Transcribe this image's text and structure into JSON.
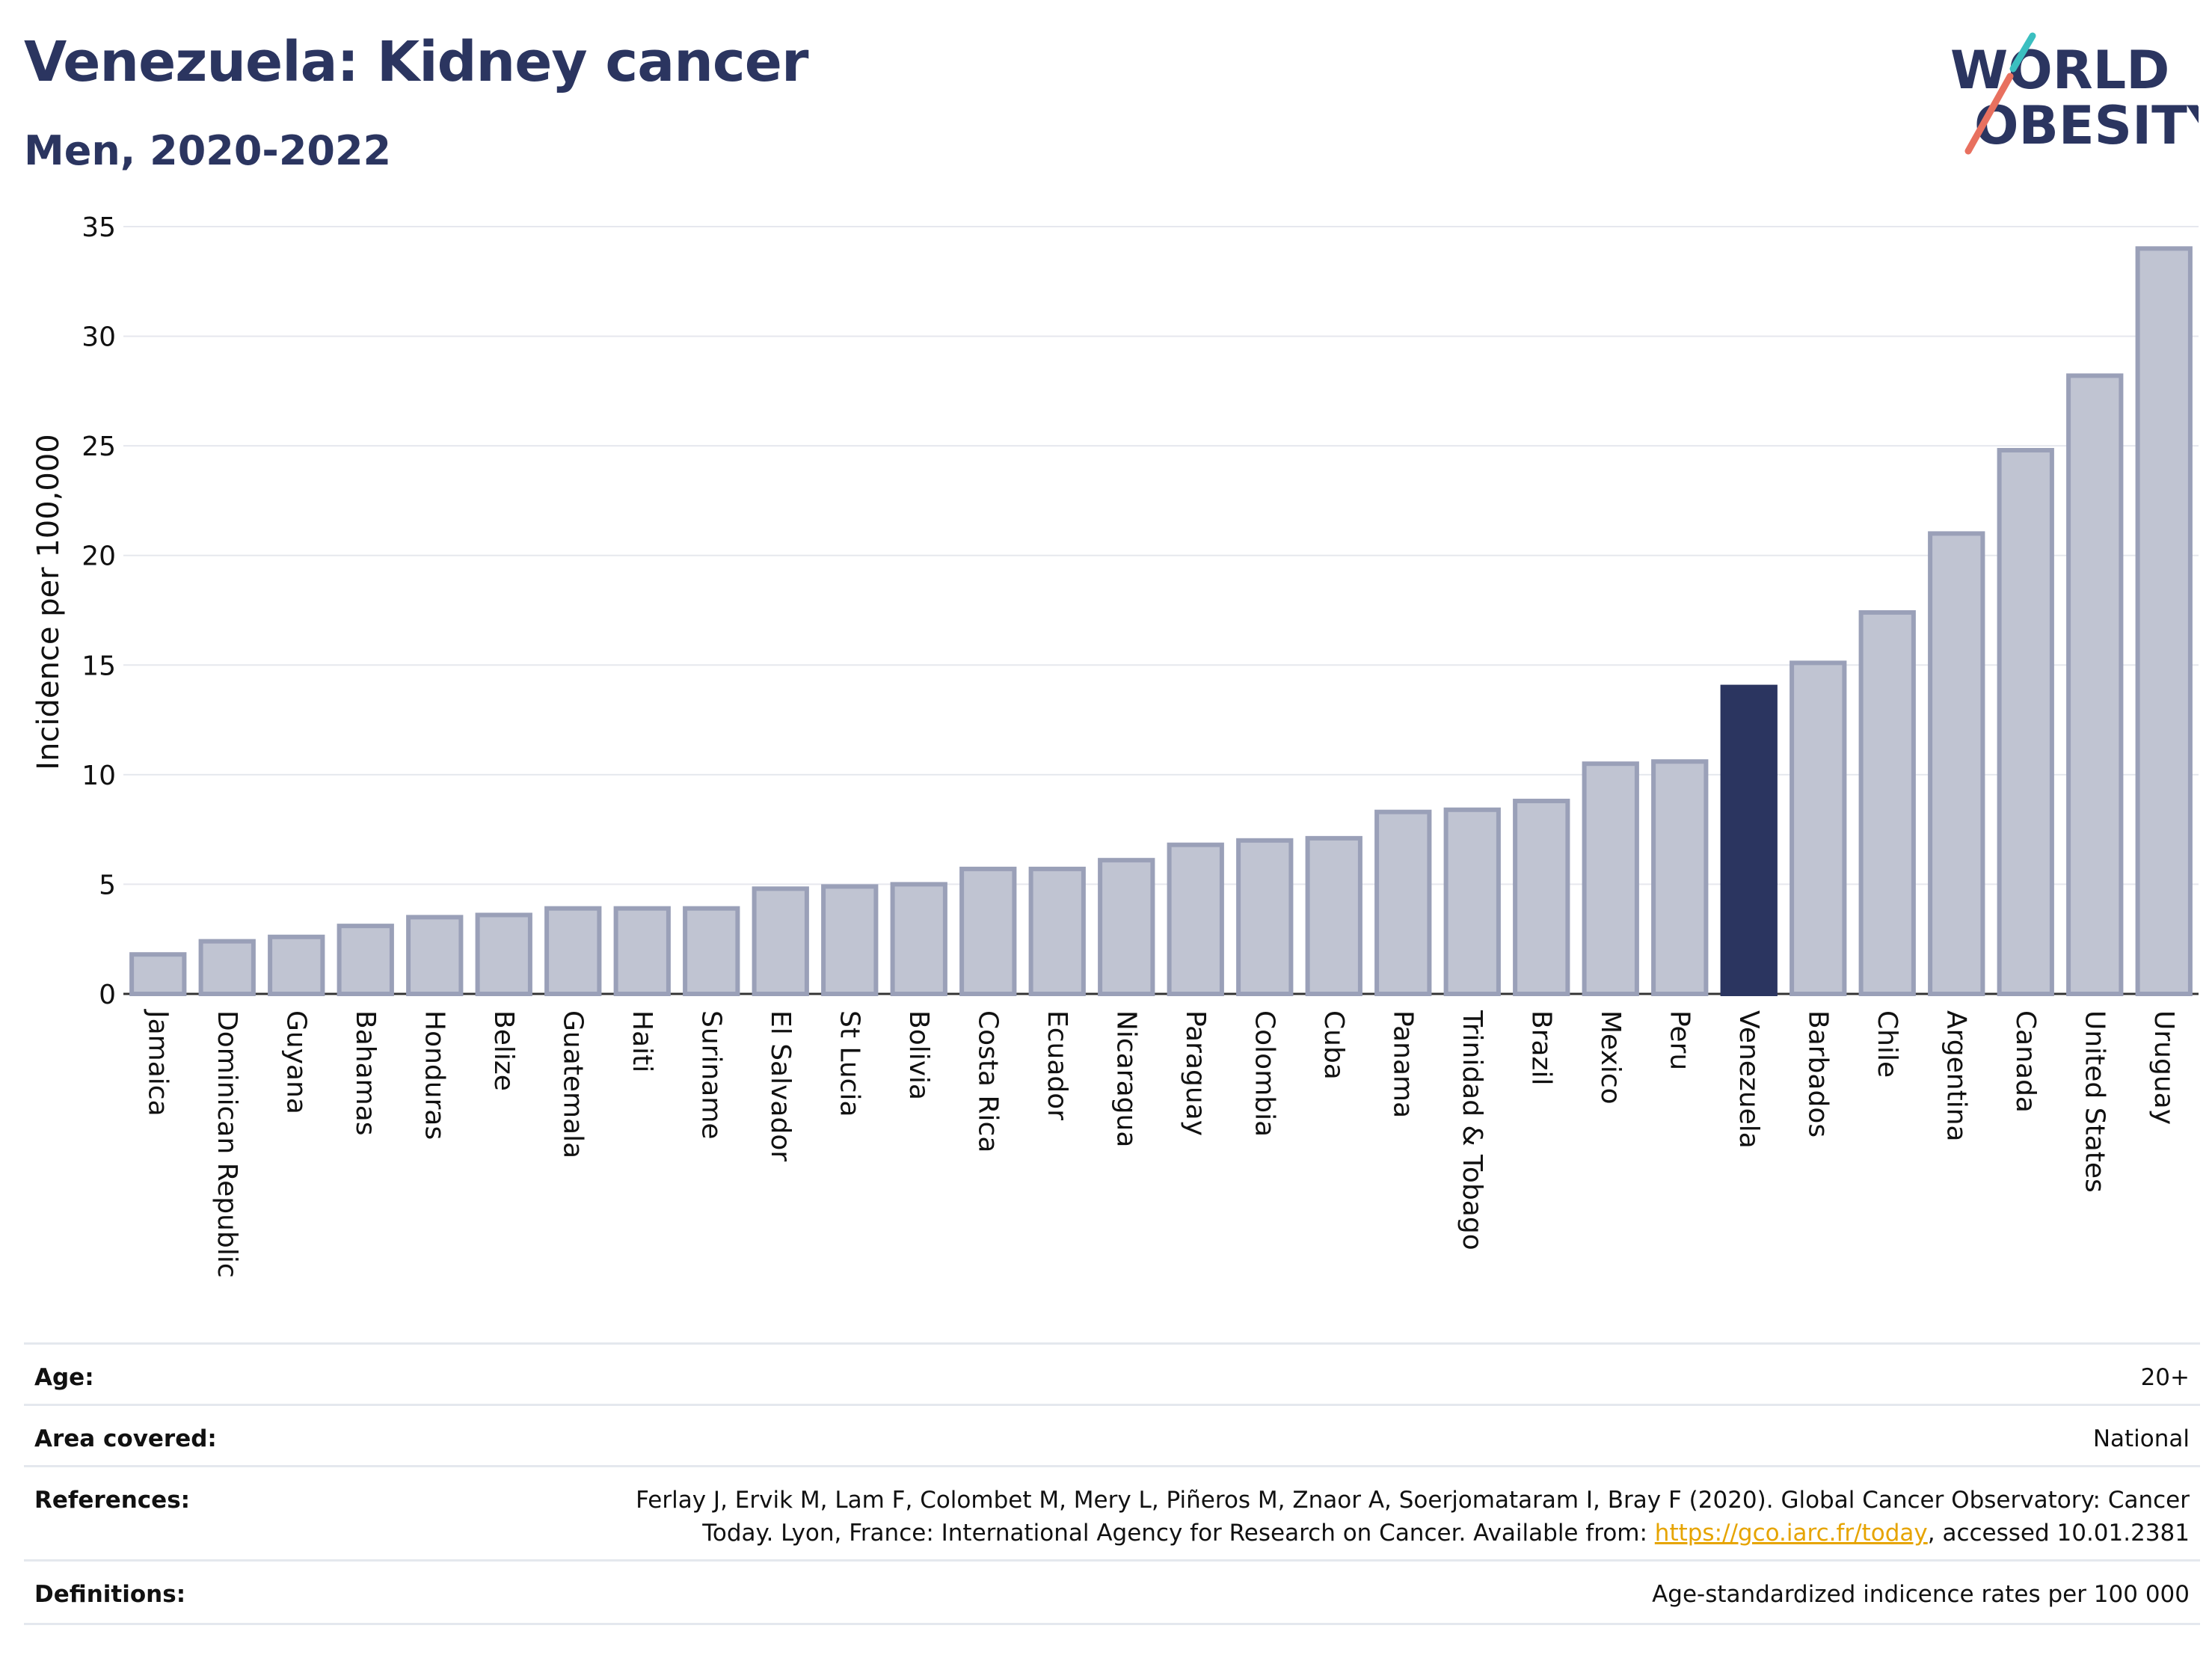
{
  "header": {
    "title": "Venezuela: Kidney cancer",
    "subtitle": "Men, 2020-2022"
  },
  "logo": {
    "line1": "WORLD",
    "line2": "OBESITY"
  },
  "chart_data": {
    "type": "bar",
    "ylabel": "Incidence per 100,000",
    "ylim": [
      0,
      35
    ],
    "yticks": [
      0,
      5,
      10,
      15,
      20,
      25,
      30,
      35
    ],
    "grid": true,
    "highlight": "Venezuela",
    "colors": {
      "bar": "#c0c4d2",
      "bar_edge": "#9aa0b8",
      "highlight": "#2b3560"
    },
    "categories": [
      "Jamaica",
      "Dominican Republic",
      "Guyana",
      "Bahamas",
      "Honduras",
      "Belize",
      "Guatemala",
      "Haiti",
      "Suriname",
      "El Salvador",
      "St Lucia",
      "Bolivia",
      "Costa Rica",
      "Ecuador",
      "Nicaragua",
      "Paraguay",
      "Colombia",
      "Cuba",
      "Panama",
      "Trinidad & Tobago",
      "Brazil",
      "Mexico",
      "Peru",
      "Venezuela",
      "Barbados",
      "Chile",
      "Argentina",
      "Canada",
      "United States",
      "Uruguay"
    ],
    "values": [
      1.8,
      2.4,
      2.6,
      3.1,
      3.5,
      3.6,
      3.9,
      3.9,
      3.9,
      4.8,
      4.9,
      5.0,
      5.7,
      5.7,
      6.1,
      6.8,
      7.0,
      7.1,
      8.3,
      8.4,
      8.8,
      10.5,
      10.6,
      14.0,
      15.1,
      17.4,
      21.0,
      24.8,
      28.2,
      34.0
    ]
  },
  "meta": {
    "age": {
      "label": "Age:",
      "value": "20+"
    },
    "area": {
      "label": "Area covered:",
      "value": "National"
    },
    "references": {
      "label": "References:",
      "line1": "Ferlay J, Ervik M, Lam F, Colombet M, Mery L, Piñeros M, Znaor A, Soerjomataram I, Bray F (2020). Global Cancer Observatory: Cancer",
      "line2_pre": "Today. Lyon, France: International Agency for Research on Cancer. Available from: ",
      "link": "https://gco.iarc.fr/today",
      "line2_post": ", accessed 10.01.2381"
    },
    "definitions": {
      "label": "Definitions:",
      "value": "Age-standardized indicence rates per 100 000"
    }
  }
}
